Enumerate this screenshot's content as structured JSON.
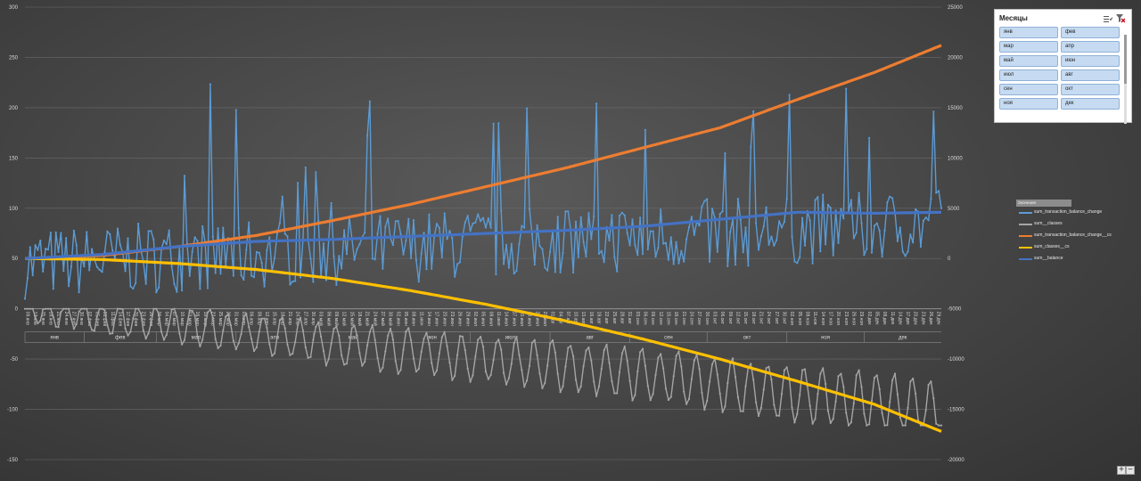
{
  "chart_data": {
    "type": "line",
    "title": "",
    "xlabel": "",
    "ylabel": "",
    "left_axis": {
      "ylim": [
        -150,
        300
      ],
      "ticks": [
        300,
        250,
        200,
        150,
        100,
        50,
        0,
        -50,
        -100,
        -150
      ]
    },
    "right_axis": {
      "ylim": [
        -20000,
        25000
      ],
      "ticks": [
        25000,
        20000,
        15000,
        10000,
        5000,
        0,
        -5000,
        -10000,
        -15000,
        -20000
      ]
    },
    "x_axis": {
      "start": "2023-01-09",
      "end": "2023-12-31",
      "tick_every_days": 3,
      "months": [
        "янв",
        "фев",
        "мар",
        "апр",
        "май",
        "июн",
        "июл",
        "авг",
        "сен",
        "окт",
        "ноя",
        "дек"
      ]
    },
    "grid": true,
    "legend_placement": "right",
    "series": [
      {
        "name": "sum_transaction_balance_change",
        "axis": "left",
        "color": "#5b9bd5",
        "marker": true,
        "trend": [
          [
            0,
            45
          ],
          [
            90,
            55
          ],
          [
            180,
            65
          ],
          [
            270,
            75
          ],
          [
            356,
            85
          ]
        ],
        "noise_amplitude": 35,
        "range": [
          0,
          262
        ]
      },
      {
        "name": "sum_classes",
        "axis": "left",
        "color": "#a5a5a5",
        "marker": true,
        "trend": [
          [
            0,
            0
          ],
          [
            60,
            -15
          ],
          [
            120,
            -35
          ],
          [
            180,
            -50
          ],
          [
            240,
            -65
          ],
          [
            300,
            -85
          ],
          [
            356,
            -100
          ]
        ],
        "weekly_amplitude": 15,
        "range": [
          -116,
          0
        ]
      },
      {
        "name": "sum_transaction_balance_change_cs",
        "axis": "right",
        "color": "#ed7d31",
        "marker": false,
        "values_xy": [
          [
            0,
            0
          ],
          [
            30,
            300
          ],
          [
            60,
            1200
          ],
          [
            90,
            2300
          ],
          [
            120,
            3800
          ],
          [
            150,
            5400
          ],
          [
            180,
            7200
          ],
          [
            210,
            9000
          ],
          [
            240,
            11000
          ],
          [
            270,
            13000
          ],
          [
            300,
            15800
          ],
          [
            330,
            18500
          ],
          [
            356,
            21200
          ]
        ]
      },
      {
        "name": "sum_classes_cs",
        "axis": "right",
        "color": "#ffc000",
        "marker": false,
        "values_xy": [
          [
            0,
            0
          ],
          [
            30,
            -100
          ],
          [
            60,
            -500
          ],
          [
            90,
            -1100
          ],
          [
            120,
            -2000
          ],
          [
            150,
            -3200
          ],
          [
            180,
            -4600
          ],
          [
            210,
            -6200
          ],
          [
            240,
            -8000
          ],
          [
            270,
            -10000
          ],
          [
            300,
            -12200
          ],
          [
            330,
            -14500
          ],
          [
            356,
            -17200
          ]
        ]
      },
      {
        "name": "sum_balance",
        "axis": "right",
        "color": "#4472c4",
        "marker": false,
        "values_xy": [
          [
            0,
            0
          ],
          [
            30,
            400
          ],
          [
            60,
            1200
          ],
          [
            90,
            1700
          ],
          [
            120,
            1900
          ],
          [
            150,
            2200
          ],
          [
            180,
            2500
          ],
          [
            210,
            2800
          ],
          [
            240,
            3200
          ],
          [
            270,
            3900
          ],
          [
            300,
            4600
          ],
          [
            330,
            4500
          ],
          [
            356,
            4600
          ]
        ]
      }
    ]
  },
  "slicer": {
    "title": "Месяцы",
    "items": [
      "янв",
      "фев",
      "мар",
      "апр",
      "май",
      "июн",
      "июл",
      "авг",
      "сен",
      "окт",
      "ноя",
      "дек"
    ]
  },
  "legend": {
    "header": "Значения",
    "items": [
      {
        "label": "sum_transaction_balance_change",
        "color": "#5b9bd5"
      },
      {
        "label": "sum__classes",
        "color": "#a5a5a5"
      },
      {
        "label": "sum_transaction_balance_change__cs",
        "color": "#ed7d31"
      },
      {
        "label": "sum_classes__cs",
        "color": "#ffc000"
      },
      {
        "label": "sum__balance",
        "color": "#4472c4"
      }
    ]
  },
  "zoom": {
    "plus": "+",
    "minus": "−"
  }
}
